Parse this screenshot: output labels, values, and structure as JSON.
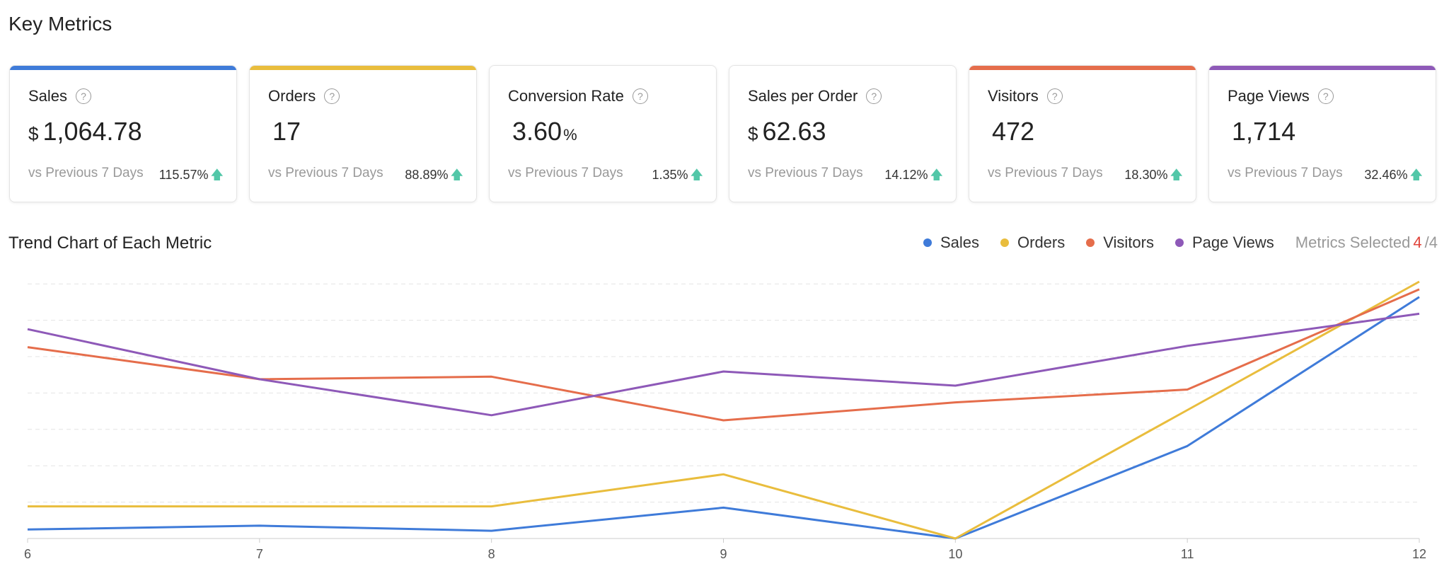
{
  "page": {
    "title": "Key Metrics"
  },
  "cards": [
    {
      "label": "Sales",
      "prefix": "$",
      "value": "1,064.78",
      "suffix": "",
      "vs": "vs Previous 7 Days",
      "delta": "115.57%",
      "accent": "#3f7bd9"
    },
    {
      "label": "Orders",
      "prefix": "",
      "value": "17",
      "suffix": "",
      "vs": "vs Previous 7 Days",
      "delta": "88.89%",
      "accent": "#e9bd3d"
    },
    {
      "label": "Conversion Rate",
      "prefix": "",
      "value": "3.60",
      "suffix": "%",
      "vs": "vs Previous 7 Days",
      "delta": "1.35%",
      "accent": ""
    },
    {
      "label": "Sales per Order",
      "prefix": "$",
      "value": "62.63",
      "suffix": "",
      "vs": "vs Previous 7 Days",
      "delta": "14.12%",
      "accent": ""
    },
    {
      "label": "Visitors",
      "prefix": "",
      "value": "472",
      "suffix": "",
      "vs": "vs Previous 7 Days",
      "delta": "18.30%",
      "accent": "#e56d4b"
    },
    {
      "label": "Page Views",
      "prefix": "",
      "value": "1,714",
      "suffix": "",
      "vs": "vs Previous 7 Days",
      "delta": "32.46%",
      "accent": "#8e59b8"
    }
  ],
  "trend": {
    "title": "Trend Chart of Each Metric",
    "metrics_selected_label": "Metrics Selected",
    "selected_count": "4",
    "total_count": "/4"
  },
  "icons": {
    "help": "question-circle-icon",
    "up": "arrow-up-icon"
  },
  "chart_data": {
    "type": "line",
    "x": [
      6,
      7,
      8,
      9,
      10,
      11,
      12
    ],
    "xlabel": "",
    "ylabel": "",
    "ylim": [
      0,
      100
    ],
    "grid": true,
    "legend_position": "top-right",
    "series": [
      {
        "name": "Sales",
        "color": "#3f7bd9",
        "values": [
          3.5,
          5,
          3,
          12,
          0,
          36,
          94
        ]
      },
      {
        "name": "Orders",
        "color": "#e9bd3d",
        "values": [
          12.5,
          12.5,
          12.5,
          25,
          0,
          50,
          100
        ]
      },
      {
        "name": "Visitors",
        "color": "#e56d4b",
        "values": [
          74.5,
          62,
          63,
          46,
          53,
          58,
          97
        ]
      },
      {
        "name": "Page Views",
        "color": "#8e59b8",
        "values": [
          81.5,
          62,
          48,
          65,
          59.5,
          75,
          87.5
        ]
      }
    ]
  }
}
